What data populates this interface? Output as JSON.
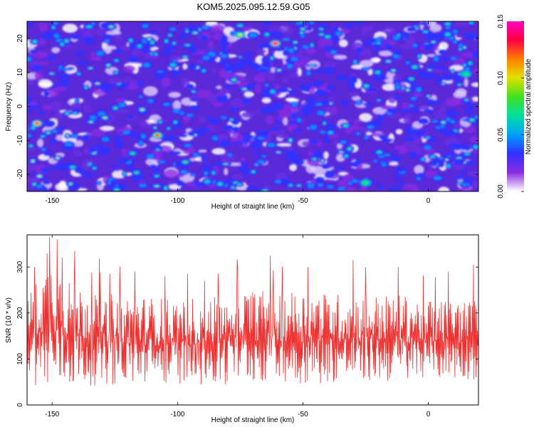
{
  "title": "KOM5.2025.095.12.59.G05",
  "chart_data": [
    {
      "type": "heatmap",
      "xlabel": "Height of straight line (km)",
      "ylabel": "Frequency (Hz)",
      "xlim": [
        -160,
        20
      ],
      "ylim": [
        -25,
        25
      ],
      "xticks": [
        -150,
        -100,
        -50,
        0
      ],
      "yticks": [
        -20,
        -10,
        0,
        10,
        20
      ],
      "colorbar": {
        "label": "Normalized spectral amplitude",
        "range": [
          0,
          0.15
        ],
        "ticks": [
          "0.00",
          "0.05",
          "0.10",
          "0.15"
        ],
        "colors": [
          "#ffffff",
          "#8a2be2",
          "#3030ff",
          "#00a0ff",
          "#00e0a0",
          "#40e020",
          "#e0e000",
          "#ff8000",
          "#ff0040",
          "#ff00c0"
        ]
      },
      "peaks": [
        {
          "x": -61,
          "y": 18.5,
          "value": 0.15
        },
        {
          "x": -156,
          "y": -5,
          "value": 0.14
        },
        {
          "x": -108,
          "y": -8.5,
          "value": 0.13
        },
        {
          "x": -75,
          "y": 21,
          "value": 0.1
        },
        {
          "x": -25,
          "y": -22.5,
          "value": 0.08
        },
        {
          "x": 15,
          "y": 9.5,
          "value": 0.07
        }
      ]
    },
    {
      "type": "line",
      "xlabel": "Height of straight line (km)",
      "ylabel": "SNR (10 * v/v)",
      "xlim": [
        -160,
        20
      ],
      "ylim": [
        0,
        370
      ],
      "xticks": [
        -150,
        -100,
        -50,
        0
      ],
      "yticks": [
        0,
        100,
        200,
        300
      ],
      "color": "#ee3030",
      "x_step_km": 0.2,
      "baseline_envelope": {
        "x": [
          -160,
          -150,
          -140,
          -120,
          -100,
          -85,
          -75,
          -50,
          -30,
          -10,
          0,
          20
        ],
        "lower": [
          50,
          30,
          40,
          45,
          45,
          40,
          50,
          45,
          50,
          50,
          55,
          55
        ],
        "upper": [
          240,
          320,
          260,
          240,
          230,
          240,
          250,
          250,
          240,
          240,
          230,
          230
        ]
      },
      "spikes": [
        {
          "x": -157,
          "y": 300
        },
        {
          "x": -152,
          "y": 330
        },
        {
          "x": -151,
          "y": 365
        },
        {
          "x": -148,
          "y": 360
        },
        {
          "x": -146,
          "y": 320
        },
        {
          "x": -141,
          "y": 335
        },
        {
          "x": -127,
          "y": 285
        },
        {
          "x": -117,
          "y": 290
        },
        {
          "x": -105,
          "y": 280
        },
        {
          "x": -76,
          "y": 300
        },
        {
          "x": -63,
          "y": 325
        },
        {
          "x": -48,
          "y": 300
        },
        {
          "x": -30,
          "y": 315
        },
        {
          "x": -25,
          "y": 300
        },
        {
          "x": -12,
          "y": 300
        },
        {
          "x": 8,
          "y": 290
        },
        {
          "x": 18,
          "y": 305
        }
      ]
    }
  ]
}
